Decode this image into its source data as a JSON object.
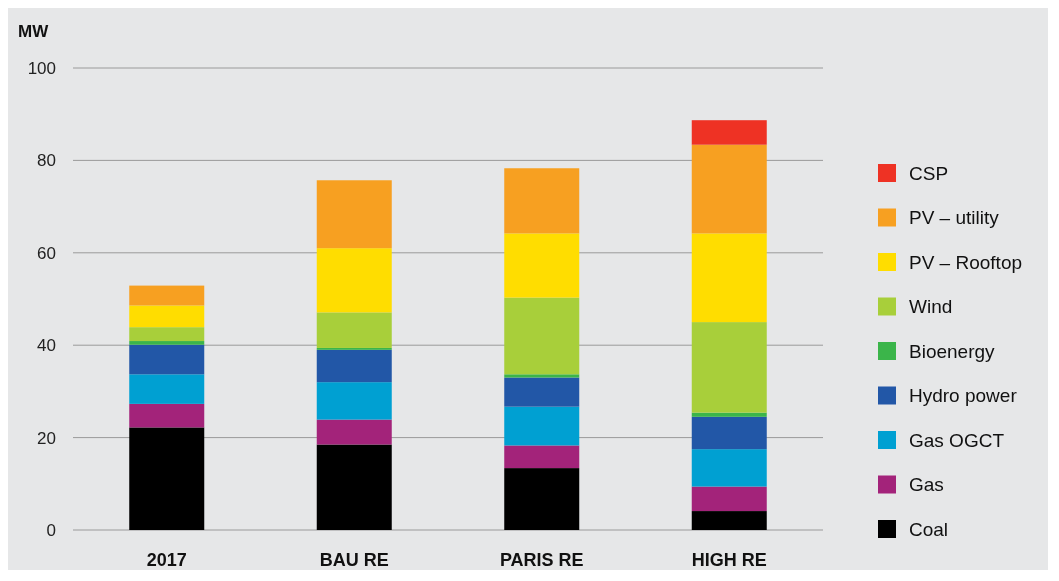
{
  "chart_data": {
    "type": "bar",
    "stacked": true,
    "ylabel": "MW",
    "categories": [
      "2017",
      "BAU RE",
      "PARIS RE",
      "HIGH RE"
    ],
    "ylim": [
      0,
      100
    ],
    "yticks": [
      0,
      20,
      40,
      60,
      80,
      100
    ],
    "grid": "y",
    "legend": "right",
    "series": [
      {
        "name": "Coal",
        "color": "#000000",
        "values": [
          22.2,
          18.5,
          13.4,
          4.1
        ]
      },
      {
        "name": "Gas",
        "color": "#a3237a",
        "values": [
          5.1,
          5.4,
          4.9,
          5.3
        ]
      },
      {
        "name": "Gas OGCT",
        "color": "#00a0d2",
        "values": [
          6.4,
          8.1,
          8.4,
          8.1
        ]
      },
      {
        "name": "Hydro power",
        "color": "#2257a7",
        "values": [
          6.4,
          7.0,
          6.3,
          7.0
        ]
      },
      {
        "name": "Bioenergy",
        "color": "#3bb54a",
        "values": [
          0.8,
          0.4,
          0.7,
          0.9
        ]
      },
      {
        "name": "Wind",
        "color": "#a8cf3a",
        "values": [
          3.0,
          7.7,
          16.6,
          19.6
        ]
      },
      {
        "name": "PV – Rooftop",
        "color": "#ffdd00",
        "values": [
          4.7,
          13.9,
          13.9,
          19.2
        ]
      },
      {
        "name": "PV – utility",
        "color": "#f7a021",
        "values": [
          4.3,
          14.7,
          14.1,
          19.2
        ]
      },
      {
        "name": "CSP",
        "color": "#ee3224",
        "values": [
          0,
          0,
          0,
          5.3
        ]
      }
    ]
  }
}
